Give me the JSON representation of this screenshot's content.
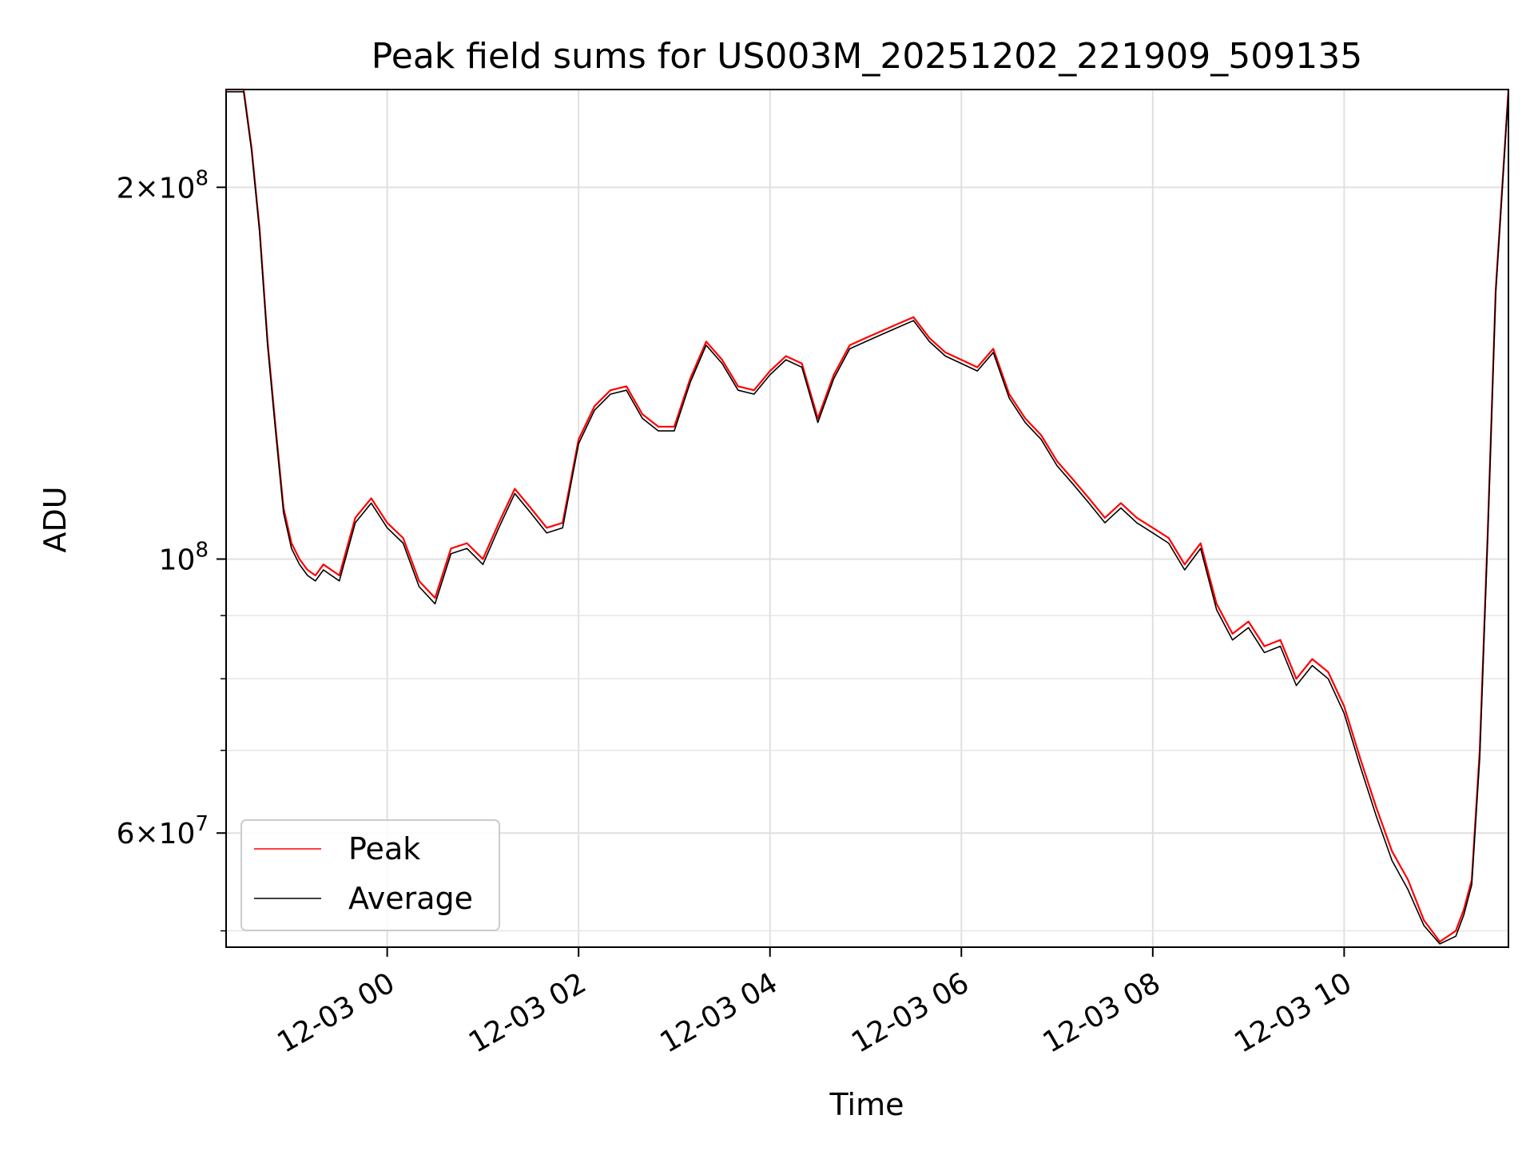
{
  "chart_data": {
    "type": "line",
    "title": "Peak field sums for US003M_20251202_221909_509135",
    "xlabel": "Time",
    "ylabel": "ADU",
    "y_scale": "log",
    "ylim": [
      48500000,
      240000000
    ],
    "xlim": [
      "2025-12-02 22:19",
      "2025-12-03 11:43"
    ],
    "grid": true,
    "legend_position": "lower-left",
    "x_ticks": [
      {
        "value": "2025-12-03 00:00",
        "label": "12-03 00"
      },
      {
        "value": "2025-12-03 02:00",
        "label": "12-03 02"
      },
      {
        "value": "2025-12-03 04:00",
        "label": "12-03 04"
      },
      {
        "value": "2025-12-03 06:00",
        "label": "12-03 06"
      },
      {
        "value": "2025-12-03 08:00",
        "label": "12-03 08"
      },
      {
        "value": "2025-12-03 10:00",
        "label": "12-03 10"
      }
    ],
    "y_ticks": [
      {
        "value": 60000000,
        "mantissa": "6",
        "exponent": "7"
      },
      {
        "value": 100000000,
        "mantissa": "",
        "exponent": "8"
      },
      {
        "value": 200000000,
        "mantissa": "2",
        "exponent": "8"
      }
    ],
    "y_minor_ticks": [
      50000000,
      70000000,
      80000000,
      90000000
    ],
    "series": [
      {
        "name": "Peak",
        "color": "#ff0000",
        "x": [
          "2025-12-02 22:19",
          "2025-12-02 22:30",
          "2025-12-02 22:35",
          "2025-12-02 22:40",
          "2025-12-02 22:45",
          "2025-12-02 22:50",
          "2025-12-02 22:55",
          "2025-12-02 23:00",
          "2025-12-02 23:05",
          "2025-12-02 23:10",
          "2025-12-02 23:15",
          "2025-12-02 23:20",
          "2025-12-02 23:30",
          "2025-12-02 23:40",
          "2025-12-02 23:50",
          "2025-12-03 00:00",
          "2025-12-03 00:10",
          "2025-12-03 00:20",
          "2025-12-03 00:30",
          "2025-12-03 00:40",
          "2025-12-03 00:50",
          "2025-12-03 01:00",
          "2025-12-03 01:10",
          "2025-12-03 01:20",
          "2025-12-03 01:30",
          "2025-12-03 01:40",
          "2025-12-03 01:50",
          "2025-12-03 02:00",
          "2025-12-03 02:10",
          "2025-12-03 02:20",
          "2025-12-03 02:30",
          "2025-12-03 02:40",
          "2025-12-03 02:50",
          "2025-12-03 03:00",
          "2025-12-03 03:10",
          "2025-12-03 03:20",
          "2025-12-03 03:30",
          "2025-12-03 03:40",
          "2025-12-03 03:50",
          "2025-12-03 04:00",
          "2025-12-03 04:10",
          "2025-12-03 04:20",
          "2025-12-03 04:30",
          "2025-12-03 04:40",
          "2025-12-03 04:50",
          "2025-12-03 05:00",
          "2025-12-03 05:10",
          "2025-12-03 05:20",
          "2025-12-03 05:30",
          "2025-12-03 05:40",
          "2025-12-03 05:50",
          "2025-12-03 06:00",
          "2025-12-03 06:10",
          "2025-12-03 06:20",
          "2025-12-03 06:30",
          "2025-12-03 06:40",
          "2025-12-03 06:50",
          "2025-12-03 07:00",
          "2025-12-03 07:10",
          "2025-12-03 07:20",
          "2025-12-03 07:30",
          "2025-12-03 07:40",
          "2025-12-03 07:50",
          "2025-12-03 08:00",
          "2025-12-03 08:10",
          "2025-12-03 08:20",
          "2025-12-03 08:30",
          "2025-12-03 08:40",
          "2025-12-03 08:50",
          "2025-12-03 09:00",
          "2025-12-03 09:10",
          "2025-12-03 09:20",
          "2025-12-03 09:30",
          "2025-12-03 09:40",
          "2025-12-03 09:50",
          "2025-12-03 10:00",
          "2025-12-03 10:10",
          "2025-12-03 10:20",
          "2025-12-03 10:30",
          "2025-12-03 10:40",
          "2025-12-03 10:50",
          "2025-12-03 11:00",
          "2025-12-03 11:10",
          "2025-12-03 11:15",
          "2025-12-03 11:20",
          "2025-12-03 11:25",
          "2025-12-03 11:30",
          "2025-12-03 11:35",
          "2025-12-03 11:43"
        ],
        "values": [
          240000000,
          240000000,
          215000000,
          185000000,
          150000000,
          128000000,
          110000000,
          103000000,
          100000000,
          98000000,
          97000000,
          99000000,
          97000000,
          108000000,
          112000000,
          107000000,
          104000000,
          96000000,
          93000000,
          102000000,
          103000000,
          100000000,
          107000000,
          114000000,
          110000000,
          106000000,
          107000000,
          125000000,
          133000000,
          137000000,
          138000000,
          131000000,
          128000000,
          128000000,
          140000000,
          150000000,
          145000000,
          138000000,
          137000000,
          142000000,
          146000000,
          144000000,
          130000000,
          141000000,
          149000000,
          151000000,
          153000000,
          155000000,
          157000000,
          151000000,
          147000000,
          145000000,
          143000000,
          148000000,
          136000000,
          130000000,
          126000000,
          120000000,
          116000000,
          112000000,
          108000000,
          111000000,
          108000000,
          106000000,
          104000000,
          99000000,
          103000000,
          92000000,
          87000000,
          89000000,
          85000000,
          86000000,
          80000000,
          83000000,
          81000000,
          76000000,
          69000000,
          63000000,
          58000000,
          55000000,
          51000000,
          49000000,
          50000000,
          52000000,
          55000000,
          70000000,
          105000000,
          165000000,
          240000000
        ]
      },
      {
        "name": "Average",
        "color": "#000000",
        "x": [
          "2025-12-02 22:19",
          "2025-12-02 22:30",
          "2025-12-02 22:35",
          "2025-12-02 22:40",
          "2025-12-02 22:45",
          "2025-12-02 22:50",
          "2025-12-02 22:55",
          "2025-12-02 23:00",
          "2025-12-02 23:05",
          "2025-12-02 23:10",
          "2025-12-02 23:15",
          "2025-12-02 23:20",
          "2025-12-02 23:30",
          "2025-12-02 23:40",
          "2025-12-02 23:50",
          "2025-12-03 00:00",
          "2025-12-03 00:10",
          "2025-12-03 00:20",
          "2025-12-03 00:30",
          "2025-12-03 00:40",
          "2025-12-03 00:50",
          "2025-12-03 01:00",
          "2025-12-03 01:10",
          "2025-12-03 01:20",
          "2025-12-03 01:30",
          "2025-12-03 01:40",
          "2025-12-03 01:50",
          "2025-12-03 02:00",
          "2025-12-03 02:10",
          "2025-12-03 02:20",
          "2025-12-03 02:30",
          "2025-12-03 02:40",
          "2025-12-03 02:50",
          "2025-12-03 03:00",
          "2025-12-03 03:10",
          "2025-12-03 03:20",
          "2025-12-03 03:30",
          "2025-12-03 03:40",
          "2025-12-03 03:50",
          "2025-12-03 04:00",
          "2025-12-03 04:10",
          "2025-12-03 04:20",
          "2025-12-03 04:30",
          "2025-12-03 04:40",
          "2025-12-03 04:50",
          "2025-12-03 05:00",
          "2025-12-03 05:10",
          "2025-12-03 05:20",
          "2025-12-03 05:30",
          "2025-12-03 05:40",
          "2025-12-03 05:50",
          "2025-12-03 06:00",
          "2025-12-03 06:10",
          "2025-12-03 06:20",
          "2025-12-03 06:30",
          "2025-12-03 06:40",
          "2025-12-03 06:50",
          "2025-12-03 07:00",
          "2025-12-03 07:10",
          "2025-12-03 07:20",
          "2025-12-03 07:30",
          "2025-12-03 07:40",
          "2025-12-03 07:50",
          "2025-12-03 08:00",
          "2025-12-03 08:10",
          "2025-12-03 08:20",
          "2025-12-03 08:30",
          "2025-12-03 08:40",
          "2025-12-03 08:50",
          "2025-12-03 09:00",
          "2025-12-03 09:10",
          "2025-12-03 09:20",
          "2025-12-03 09:30",
          "2025-12-03 09:40",
          "2025-12-03 09:50",
          "2025-12-03 10:00",
          "2025-12-03 10:10",
          "2025-12-03 10:20",
          "2025-12-03 10:30",
          "2025-12-03 10:40",
          "2025-12-03 10:50",
          "2025-12-03 11:00",
          "2025-12-03 11:10",
          "2025-12-03 11:15",
          "2025-12-03 11:20",
          "2025-12-03 11:25",
          "2025-12-03 11:30",
          "2025-12-03 11:35",
          "2025-12-03 11:43"
        ],
        "values": [
          239000000,
          239000000,
          214000000,
          184000000,
          149000000,
          127000000,
          109000000,
          102000000,
          99000000,
          97000000,
          96000000,
          98000000,
          96000000,
          107000000,
          111000000,
          106000000,
          103000000,
          95000000,
          92000000,
          101000000,
          102000000,
          99000000,
          106000000,
          113000000,
          109000000,
          105000000,
          106000000,
          124000000,
          132000000,
          136000000,
          137000000,
          130000000,
          127000000,
          127000000,
          139000000,
          149000000,
          144000000,
          137000000,
          136000000,
          141000000,
          145000000,
          143000000,
          129000000,
          140000000,
          148000000,
          150000000,
          152000000,
          154000000,
          156000000,
          150000000,
          146000000,
          144000000,
          142000000,
          147000000,
          135000000,
          129000000,
          125000000,
          119000000,
          115000000,
          111000000,
          107000000,
          110000000,
          107000000,
          105000000,
          103000000,
          98000000,
          102000000,
          91000000,
          86000000,
          88000000,
          84000000,
          85000000,
          79000000,
          82000000,
          80000000,
          75000000,
          68000000,
          62000000,
          57000000,
          54000000,
          50500000,
          48800000,
          49500000,
          51500000,
          54500000,
          69000000,
          104000000,
          164000000,
          239000000
        ]
      }
    ]
  }
}
